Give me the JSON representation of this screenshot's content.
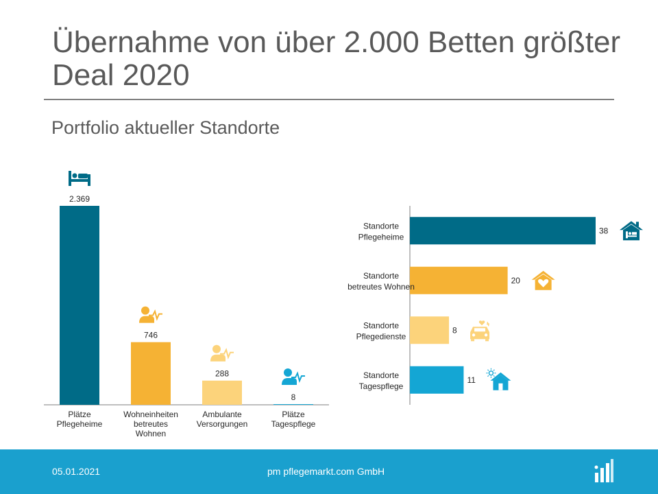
{
  "slide": {
    "title": "Übernahme von über 2.000 Betten größter Deal 2020",
    "subtitle": "Portfolio aktueller Standorte"
  },
  "footer": {
    "date": "05.01.2021",
    "company": "pm pflegemarkt.com GmbH",
    "logo_icon": "pm-logo-bars-icon"
  },
  "colors": {
    "dark_teal": "#006b87",
    "orange": "#f5b234",
    "light_yellow": "#fcd37b",
    "cyan": "#14a6d4",
    "footer_blue": "#1aa0ce"
  },
  "chart_data": [
    {
      "type": "bar",
      "categories": [
        "Plätze\nPflegeheime",
        "Wohneinheiten\nbetreutes\nWohnen",
        "Ambulante\nVersorgungen",
        "Plätze\nTagespflege"
      ],
      "values": [
        2369,
        746,
        288,
        8
      ],
      "value_labels": [
        "2.369",
        "746",
        "288",
        "8"
      ],
      "colors": [
        "#006b87",
        "#f5b234",
        "#fcd37b",
        "#14a6d4"
      ],
      "icons": [
        "bed-icon",
        "person-heartbeat-icon",
        "person-heartbeat-icon",
        "person-heartbeat-icon"
      ],
      "ylim": [
        0,
        2369
      ],
      "grid": false,
      "xlabel": "",
      "ylabel": ""
    },
    {
      "type": "bar",
      "orientation": "horizontal",
      "categories": [
        "Standorte\nPflegeheime",
        "Standorte\nbetreutes Wohnen",
        "Standorte\nPflegedienste",
        "Standorte\nTagespflege"
      ],
      "values": [
        38,
        20,
        8,
        11
      ],
      "value_labels": [
        "38",
        "20",
        "8",
        "11"
      ],
      "colors": [
        "#006b87",
        "#f5b234",
        "#fcd37b",
        "#14a6d4"
      ],
      "icons": [
        "house-bed-icon",
        "house-heart-icon",
        "car-heart-icon",
        "house-sun-icon"
      ],
      "xlim": [
        0,
        38
      ],
      "grid": false,
      "xlabel": "",
      "ylabel": ""
    }
  ]
}
